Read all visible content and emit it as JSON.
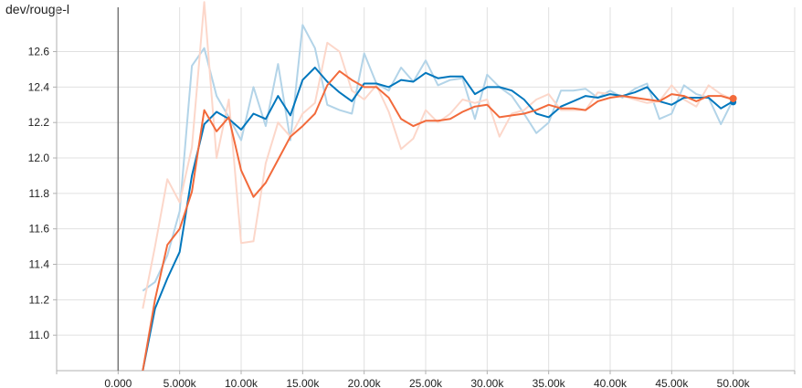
{
  "chart_data": {
    "type": "line",
    "title": "dev/rouge-l",
    "xlim": [
      -5000,
      55000
    ],
    "ylim": [
      10.8,
      12.85
    ],
    "xticks": [
      0,
      5000,
      10000,
      15000,
      20000,
      25000,
      30000,
      35000,
      40000,
      45000,
      50000
    ],
    "xtick_labels": [
      "0.000",
      "5.000k",
      "10.00k",
      "15.00k",
      "20.00k",
      "25.00k",
      "30.00k",
      "35.00k",
      "40.00k",
      "45.00k",
      "50.00k"
    ],
    "yticks": [
      11.0,
      11.2,
      11.4,
      11.6,
      11.8,
      12.0,
      12.2,
      12.4,
      12.6
    ],
    "ytick_labels": [
      "11.0",
      "11.2",
      "11.4",
      "11.6",
      "11.8",
      "12.0",
      "12.2",
      "12.4",
      "12.6"
    ],
    "grid": true,
    "series": [
      {
        "color": "#0277bd",
        "raw_color": "#b3d4e8",
        "x": [
          2000,
          3000,
          4000,
          5000,
          6000,
          7000,
          8000,
          9000,
          10000,
          11000,
          12000,
          13000,
          14000,
          15000,
          16000,
          17000,
          18000,
          19000,
          20000,
          21000,
          22000,
          23000,
          24000,
          25000,
          26000,
          27000,
          28000,
          29000,
          30000,
          31000,
          32000,
          33000,
          34000,
          35000,
          36000,
          37000,
          38000,
          39000,
          40000,
          41000,
          42000,
          43000,
          44000,
          45000,
          46000,
          47000,
          48000,
          49000,
          50000
        ],
        "smoothed": [
          10.8,
          11.15,
          11.32,
          11.47,
          11.9,
          12.19,
          12.26,
          12.22,
          12.16,
          12.25,
          12.22,
          12.35,
          12.24,
          12.44,
          12.51,
          12.43,
          12.37,
          12.32,
          12.42,
          12.42,
          12.4,
          12.44,
          12.43,
          12.48,
          12.45,
          12.46,
          12.46,
          12.36,
          12.4,
          12.4,
          12.38,
          12.33,
          12.25,
          12.23,
          12.29,
          12.32,
          12.35,
          12.34,
          12.36,
          12.35,
          12.37,
          12.4,
          12.32,
          12.3,
          12.34,
          12.34,
          12.34,
          12.28,
          12.32
        ],
        "raw": [
          11.25,
          11.3,
          11.45,
          11.7,
          12.52,
          12.62,
          12.35,
          12.23,
          12.1,
          12.4,
          12.18,
          12.53,
          12.1,
          12.75,
          12.62,
          12.3,
          12.27,
          12.25,
          12.59,
          12.42,
          12.38,
          12.51,
          12.43,
          12.55,
          12.41,
          12.44,
          12.45,
          12.22,
          12.47,
          12.4,
          12.35,
          12.25,
          12.14,
          12.2,
          12.38,
          12.38,
          12.39,
          12.34,
          12.38,
          12.34,
          12.39,
          12.42,
          12.22,
          12.25,
          12.41,
          12.36,
          12.34,
          12.19,
          12.33
        ]
      },
      {
        "color": "#f26a3b",
        "raw_color": "#fcd7ca",
        "x": [
          2000,
          3000,
          4000,
          5000,
          6000,
          7000,
          8000,
          9000,
          10000,
          11000,
          12000,
          13000,
          14000,
          15000,
          16000,
          17000,
          18000,
          19000,
          20000,
          21000,
          22000,
          23000,
          24000,
          25000,
          26000,
          27000,
          28000,
          29000,
          30000,
          31000,
          32000,
          33000,
          34000,
          35000,
          36000,
          37000,
          38000,
          39000,
          40000,
          41000,
          42000,
          43000,
          44000,
          45000,
          46000,
          47000,
          48000,
          49000,
          50000
        ],
        "smoothed": [
          10.8,
          11.2,
          11.51,
          11.6,
          11.81,
          12.27,
          12.15,
          12.23,
          11.93,
          11.78,
          11.86,
          11.99,
          12.12,
          12.18,
          12.25,
          12.41,
          12.49,
          12.44,
          12.4,
          12.4,
          12.34,
          12.22,
          12.18,
          12.21,
          12.21,
          12.22,
          12.26,
          12.29,
          12.3,
          12.23,
          12.24,
          12.25,
          12.27,
          12.3,
          12.28,
          12.28,
          12.27,
          12.32,
          12.34,
          12.35,
          12.34,
          12.33,
          12.32,
          12.36,
          12.35,
          12.32,
          12.35,
          12.35,
          12.33
        ],
        "raw": [
          11.15,
          11.5,
          11.88,
          11.75,
          12.06,
          12.88,
          12.0,
          12.33,
          11.52,
          11.53,
          11.97,
          12.2,
          12.12,
          12.25,
          12.31,
          12.65,
          12.6,
          12.38,
          12.33,
          12.41,
          12.26,
          12.05,
          12.11,
          12.27,
          12.2,
          12.25,
          12.33,
          12.31,
          12.33,
          12.12,
          12.25,
          12.27,
          12.33,
          12.36,
          12.27,
          12.27,
          12.27,
          12.37,
          12.36,
          12.35,
          12.33,
          12.31,
          12.32,
          12.41,
          12.33,
          12.29,
          12.41,
          12.36,
          12.33
        ]
      }
    ]
  }
}
